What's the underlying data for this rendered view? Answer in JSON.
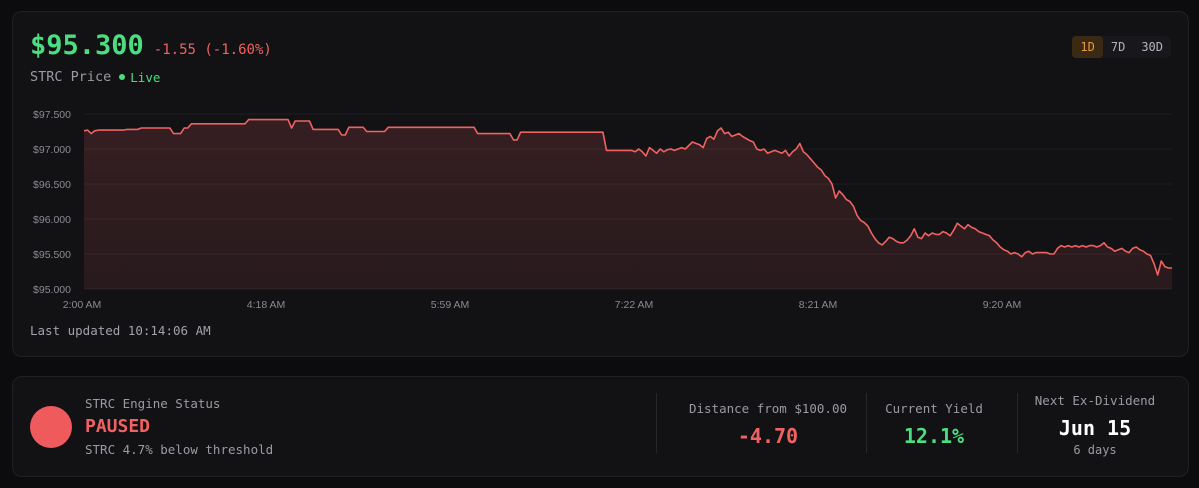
{
  "header": {
    "price": "$95.300",
    "change": "-1.55 (-1.60%)",
    "ticker_label": "STRC Price",
    "live_label": "Live"
  },
  "range_tabs": [
    "1D",
    "7D",
    "30D"
  ],
  "active_range": "1D",
  "last_updated": "Last updated 10:14:06 AM",
  "colors": {
    "price_up": "#4ade80",
    "price_down": "#f06262",
    "line": "#f06262",
    "active_tab": "#e89a3c"
  },
  "chart_data": {
    "type": "area",
    "ylim": [
      95.0,
      97.5
    ],
    "y_ticks": [
      97.5,
      97.0,
      96.5,
      96.0,
      95.5,
      95.0
    ],
    "y_tick_labels": [
      "$97.500",
      "$97.000",
      "$96.500",
      "$96.000",
      "$95.500",
      "$95.000"
    ],
    "x_tick_labels": [
      "2:00 AM",
      "4:18 AM",
      "5:59 AM",
      "7:22 AM",
      "8:21 AM",
      "9:20 AM"
    ],
    "grid": true,
    "series": [
      {
        "values": [
          97.26,
          97.27,
          97.22,
          97.26,
          97.27,
          97.27,
          97.27,
          97.27,
          97.27,
          97.27,
          97.27,
          97.27,
          97.28,
          97.28,
          97.28,
          97.28,
          97.3,
          97.3,
          97.3,
          97.3,
          97.3,
          97.3,
          97.3,
          97.3,
          97.3,
          97.22,
          97.22,
          97.22,
          97.3,
          97.3,
          97.36,
          97.36,
          97.36,
          97.36,
          97.36,
          97.36,
          97.36,
          97.36,
          97.36,
          97.36,
          97.36,
          97.36,
          97.36,
          97.36,
          97.36,
          97.36,
          97.42,
          97.42,
          97.42,
          97.42,
          97.42,
          97.42,
          97.42,
          97.42,
          97.42,
          97.42,
          97.42,
          97.42,
          97.3,
          97.4,
          97.4,
          97.4,
          97.4,
          97.4,
          97.28,
          97.28,
          97.28,
          97.28,
          97.28,
          97.28,
          97.28,
          97.28,
          97.2,
          97.2,
          97.31,
          97.31,
          97.31,
          97.31,
          97.31,
          97.25,
          97.25,
          97.25,
          97.25,
          97.25,
          97.25,
          97.31,
          97.31,
          97.31,
          97.31,
          97.31,
          97.31,
          97.31,
          97.31,
          97.31,
          97.31,
          97.31,
          97.31,
          97.31,
          97.31,
          97.31,
          97.31,
          97.31,
          97.31,
          97.31,
          97.31,
          97.31,
          97.31,
          97.31,
          97.31,
          97.31,
          97.22,
          97.22,
          97.22,
          97.22,
          97.22,
          97.22,
          97.22,
          97.22,
          97.22,
          97.22,
          97.13,
          97.13,
          97.24,
          97.24,
          97.24,
          97.24,
          97.24,
          97.24,
          97.24,
          97.24,
          97.24,
          97.24,
          97.24,
          97.24,
          97.24,
          97.24,
          97.24,
          97.24,
          97.24,
          97.24,
          97.24,
          97.24,
          97.24,
          97.24,
          97.24,
          97.24,
          96.98,
          96.98,
          96.98,
          96.98,
          96.98,
          96.98,
          96.98,
          96.98,
          96.96,
          97.0,
          96.96,
          96.9,
          97.02,
          96.98,
          96.94,
          97.0,
          96.96,
          96.99,
          97.0,
          96.98,
          97.0,
          97.02,
          97.0,
          97.05,
          97.1,
          97.08,
          97.06,
          97.02,
          97.15,
          97.18,
          97.14,
          97.26,
          97.3,
          97.22,
          97.24,
          97.18,
          97.2,
          97.22,
          97.18,
          97.15,
          97.12,
          97.1,
          97.0,
          96.98,
          97.0,
          96.94,
          96.96,
          96.98,
          96.96,
          96.94,
          96.98,
          96.9,
          96.96,
          97.0,
          97.08,
          96.96,
          96.92,
          96.86,
          96.8,
          96.74,
          96.7,
          96.62,
          96.58,
          96.5,
          96.3,
          96.4,
          96.35,
          96.28,
          96.25,
          96.18,
          96.05,
          95.98,
          95.95,
          95.9,
          95.8,
          95.72,
          95.66,
          95.63,
          95.68,
          95.74,
          95.72,
          95.68,
          95.66,
          95.66,
          95.7,
          95.76,
          95.86,
          95.74,
          95.72,
          95.8,
          95.76,
          95.8,
          95.78,
          95.78,
          95.82,
          95.8,
          95.76,
          95.84,
          95.94,
          95.9,
          95.86,
          95.92,
          95.88,
          95.86,
          95.82,
          95.8,
          95.78,
          95.76,
          95.7,
          95.66,
          95.6,
          95.56,
          95.54,
          95.5,
          95.52,
          95.5,
          95.46,
          95.52,
          95.54,
          95.5,
          95.52,
          95.52,
          95.52,
          95.52,
          95.5,
          95.5,
          95.58,
          95.62,
          95.6,
          95.62,
          95.6,
          95.62,
          95.6,
          95.62,
          95.6,
          95.62,
          95.62,
          95.6,
          95.62,
          95.66,
          95.6,
          95.58,
          95.54,
          95.56,
          95.58,
          95.54,
          95.52,
          95.58,
          95.6,
          95.56,
          95.54,
          95.5,
          95.48,
          95.36,
          95.2,
          95.4,
          95.32,
          95.3,
          95.3
        ]
      }
    ]
  },
  "status": {
    "label": "STRC Engine Status",
    "value": "PAUSED",
    "note": "STRC 4.7% below threshold",
    "indicator_color": "#ef5a5d"
  },
  "metrics": {
    "distance_label": "Distance from $100.00",
    "distance_value": "-4.70",
    "yield_label": "Current Yield",
    "yield_value": "12.1%",
    "exdiv_label": "Next Ex-Dividend",
    "exdiv_date": "Jun 15",
    "exdiv_days": "6 days"
  }
}
